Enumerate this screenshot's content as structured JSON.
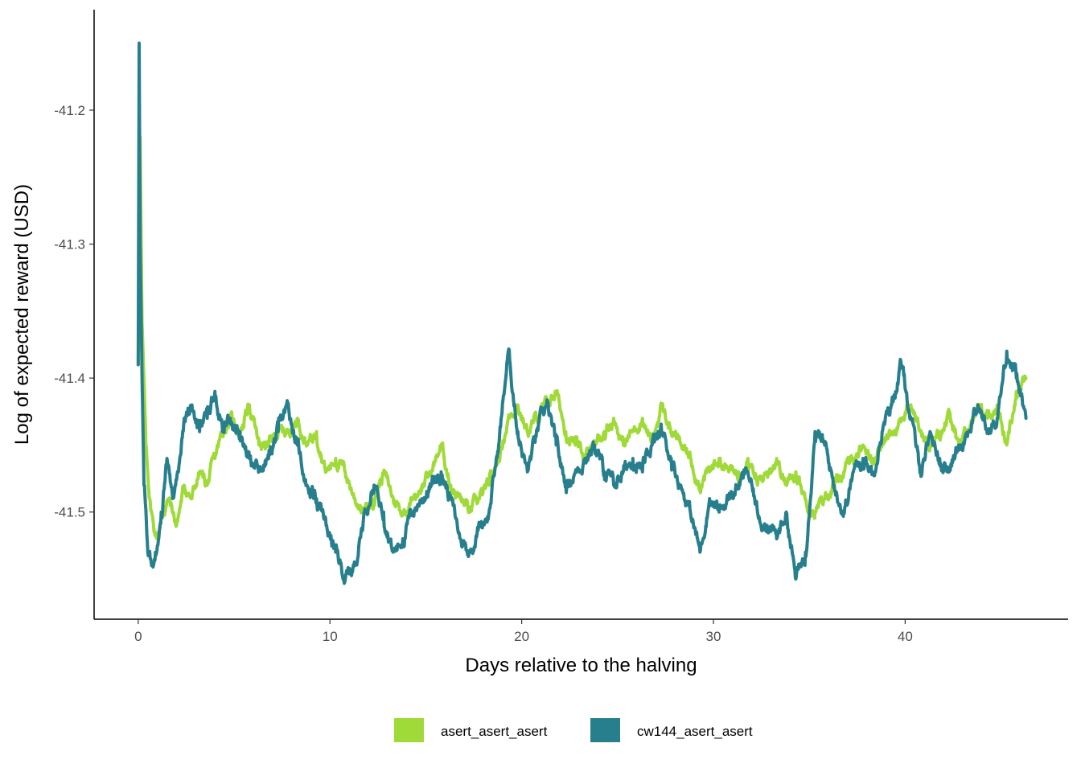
{
  "chart_data": {
    "type": "line",
    "xlabel": "Days relative to the halving",
    "ylabel": "Log of expected reward (USD)",
    "xlim": [
      -2.3,
      48.5
    ],
    "ylim": [
      -41.58,
      -41.125
    ],
    "x_ticks": [
      0,
      10,
      20,
      30,
      40
    ],
    "y_ticks": [
      -41.5,
      -41.4,
      -41.3,
      -41.2
    ],
    "x_tick_labels": [
      "0",
      "10",
      "20",
      "30",
      "40"
    ],
    "y_tick_labels": [
      "-41.5",
      "-41.4",
      "-41.3",
      "-41.2"
    ],
    "grid": false,
    "legend_position": "bottom",
    "series": [
      {
        "name": "asert_asert_asert",
        "color": "#a0da39",
        "x": [
          0,
          0.1,
          0.2,
          0.4,
          0.6,
          0.8,
          1.0,
          1.3,
          1.6,
          2.0,
          2.4,
          2.8,
          3.2,
          3.6,
          4.0,
          4.4,
          4.8,
          5.3,
          5.8,
          6.3,
          6.8,
          7.3,
          7.8,
          8.3,
          8.8,
          9.3,
          9.8,
          10.3,
          10.8,
          11.3,
          11.8,
          12.3,
          12.8,
          13.3,
          13.8,
          14.3,
          14.8,
          15.3,
          15.8,
          16.3,
          16.8,
          17.3,
          17.8,
          18.3,
          18.8,
          19.3,
          19.8,
          20.3,
          20.8,
          21.3,
          21.8,
          22.3,
          22.8,
          23.3,
          23.8,
          24.3,
          24.8,
          25.3,
          25.8,
          26.3,
          26.8,
          27.3,
          27.8,
          28.3,
          28.8,
          29.3,
          29.8,
          30.3,
          30.8,
          31.3,
          31.8,
          32.3,
          32.8,
          33.3,
          33.8,
          34.3,
          34.8,
          35.3,
          35.8,
          36.3,
          36.8,
          37.3,
          37.8,
          38.3,
          38.8,
          39.3,
          39.8,
          40.3,
          40.8,
          41.3,
          41.8,
          42.3,
          42.8,
          43.3,
          43.8,
          44.3,
          44.8,
          45.3,
          45.8,
          46.3
        ],
        "y": [
          -41.39,
          -41.22,
          -41.36,
          -41.45,
          -41.49,
          -41.51,
          -41.52,
          -41.5,
          -41.49,
          -41.51,
          -41.48,
          -41.49,
          -41.47,
          -41.48,
          -41.46,
          -41.44,
          -41.43,
          -41.44,
          -41.42,
          -41.45,
          -41.45,
          -41.44,
          -41.44,
          -41.43,
          -41.45,
          -41.44,
          -41.47,
          -41.46,
          -41.47,
          -41.49,
          -41.5,
          -41.49,
          -41.47,
          -41.49,
          -41.5,
          -41.49,
          -41.48,
          -41.47,
          -41.45,
          -41.48,
          -41.49,
          -41.5,
          -41.49,
          -41.48,
          -41.46,
          -41.43,
          -41.42,
          -41.44,
          -41.43,
          -41.42,
          -41.41,
          -41.44,
          -41.45,
          -41.46,
          -41.45,
          -41.44,
          -41.43,
          -41.45,
          -41.44,
          -41.43,
          -41.45,
          -41.42,
          -41.44,
          -41.45,
          -41.46,
          -41.48,
          -41.47,
          -41.46,
          -41.47,
          -41.47,
          -41.46,
          -41.48,
          -41.47,
          -41.46,
          -41.48,
          -41.47,
          -41.49,
          -41.5,
          -41.49,
          -41.48,
          -41.47,
          -41.46,
          -41.45,
          -41.46,
          -41.45,
          -41.44,
          -41.43,
          -41.42,
          -41.44,
          -41.45,
          -41.44,
          -41.43,
          -41.45,
          -41.44,
          -41.42,
          -41.43,
          -41.42,
          -41.45,
          -41.41,
          -41.4
        ],
        "noise": 0.006
      },
      {
        "name": "cw144_asert_asert",
        "color": "#277f8e",
        "x": [
          0,
          0.05,
          0.1,
          0.2,
          0.3,
          0.5,
          0.7,
          0.9,
          1.2,
          1.5,
          1.8,
          2.1,
          2.4,
          2.8,
          3.2,
          3.6,
          4.0,
          4.4,
          4.8,
          5.3,
          5.8,
          6.3,
          6.8,
          7.3,
          7.8,
          8.3,
          8.8,
          9.3,
          9.8,
          10.3,
          10.8,
          11.3,
          11.8,
          12.3,
          12.8,
          13.3,
          13.8,
          14.3,
          14.8,
          15.3,
          15.8,
          16.3,
          16.8,
          17.3,
          17.8,
          18.3,
          18.8,
          19.3,
          19.8,
          20.3,
          20.8,
          21.3,
          21.8,
          22.3,
          22.8,
          23.3,
          23.8,
          24.3,
          24.8,
          25.3,
          25.8,
          26.3,
          26.8,
          27.3,
          27.8,
          28.3,
          28.8,
          29.3,
          29.8,
          30.3,
          30.8,
          31.3,
          31.8,
          32.3,
          32.8,
          33.3,
          33.8,
          34.3,
          34.8,
          35.3,
          35.8,
          36.3,
          36.8,
          37.3,
          37.8,
          38.3,
          38.8,
          39.3,
          39.8,
          40.3,
          40.8,
          41.3,
          41.8,
          42.3,
          42.8,
          43.3,
          43.8,
          44.3,
          44.8,
          45.3,
          45.8,
          46.3
        ],
        "y": [
          -41.39,
          -41.15,
          -41.3,
          -41.4,
          -41.48,
          -41.53,
          -41.54,
          -41.53,
          -41.5,
          -41.46,
          -41.49,
          -41.47,
          -41.43,
          -41.42,
          -41.44,
          -41.43,
          -41.41,
          -41.44,
          -41.43,
          -41.44,
          -41.46,
          -41.47,
          -41.46,
          -41.44,
          -41.42,
          -41.45,
          -41.48,
          -41.49,
          -41.51,
          -41.53,
          -41.55,
          -41.54,
          -41.5,
          -41.48,
          -41.5,
          -41.53,
          -41.52,
          -41.5,
          -41.49,
          -41.48,
          -41.47,
          -41.49,
          -41.52,
          -41.53,
          -41.51,
          -41.5,
          -41.45,
          -41.38,
          -41.44,
          -41.47,
          -41.44,
          -41.42,
          -41.45,
          -41.48,
          -41.47,
          -41.46,
          -41.45,
          -41.47,
          -41.48,
          -41.47,
          -41.46,
          -41.47,
          -41.45,
          -41.44,
          -41.46,
          -41.48,
          -41.5,
          -41.53,
          -41.49,
          -41.5,
          -41.49,
          -41.48,
          -41.47,
          -41.5,
          -41.51,
          -41.52,
          -41.5,
          -41.55,
          -41.53,
          -41.44,
          -41.45,
          -41.48,
          -41.5,
          -41.47,
          -41.46,
          -41.47,
          -41.44,
          -41.42,
          -41.39,
          -41.43,
          -41.47,
          -41.44,
          -41.46,
          -41.47,
          -41.45,
          -41.44,
          -41.42,
          -41.44,
          -41.43,
          -41.38,
          -41.4,
          -41.43
        ],
        "noise": 0.007
      }
    ]
  }
}
